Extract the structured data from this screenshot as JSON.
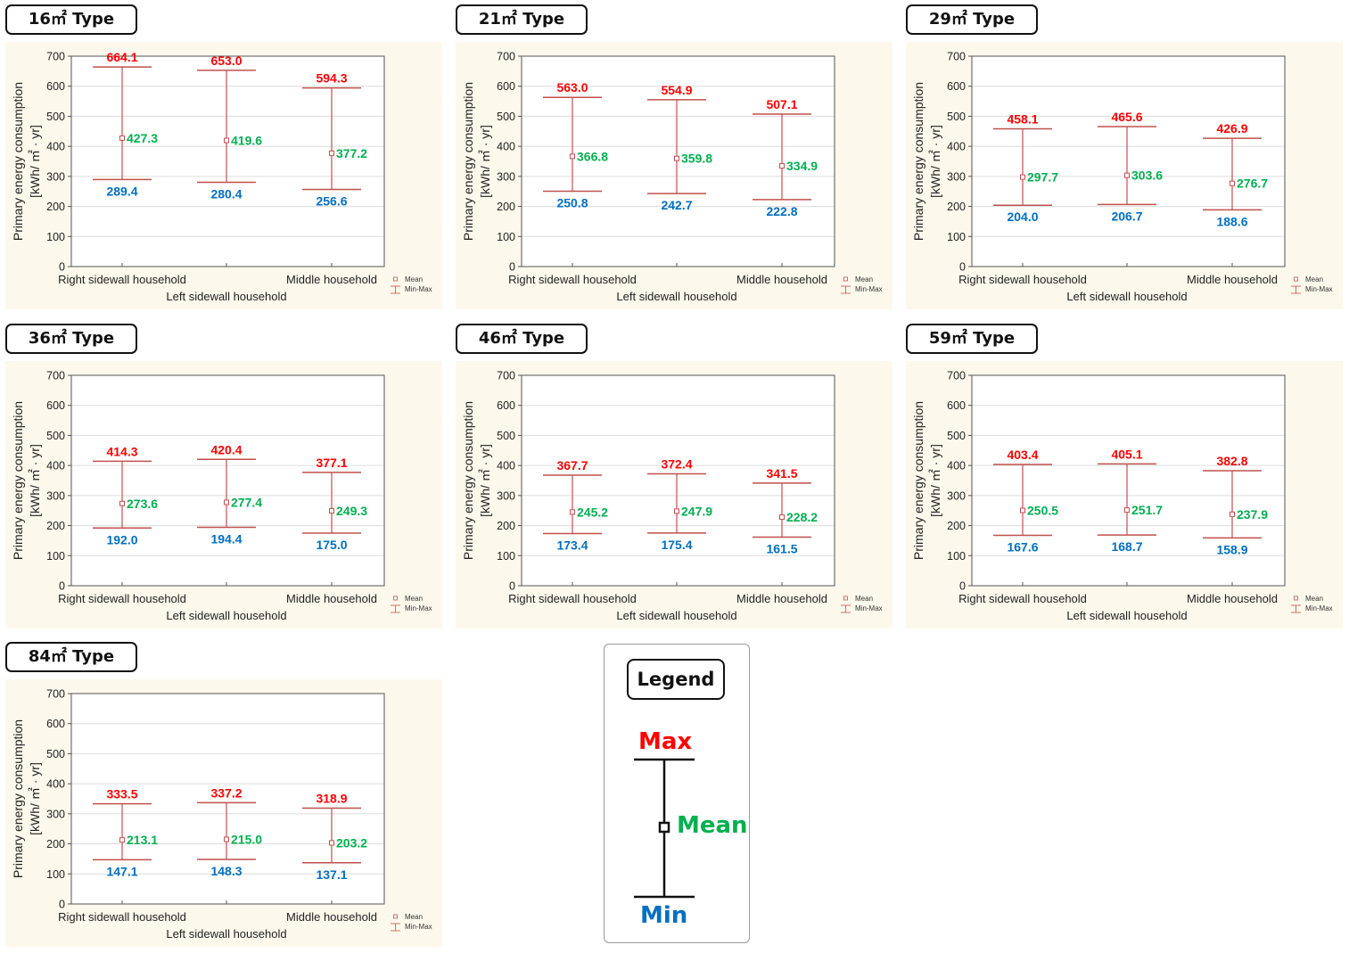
{
  "colors": {
    "max": "#ff0000",
    "mean": "#00b050",
    "min": "#0070c0",
    "bars": "#c0504d",
    "plot_bg": "#fcf8eb"
  },
  "chart_data": [
    {
      "type": "range-bar",
      "title": "16㎡ Type",
      "ylabel_line1": "Primary energy consumption",
      "ylabel_line2": "[kWh/ ㎡ · yr]",
      "categories": [
        "Right sidewall household",
        "Left sidewall household",
        "Middle household"
      ],
      "ylim": [
        0,
        700
      ],
      "yticks": [
        0,
        100,
        200,
        300,
        400,
        500,
        600,
        700
      ],
      "grid": true,
      "legend_position": "bottom-right",
      "legend_items": [
        "Mean",
        "Min-Max"
      ],
      "series": [
        {
          "name": "Max",
          "values": [
            664.1,
            653.0,
            594.3
          ]
        },
        {
          "name": "Mean",
          "values": [
            427.3,
            419.6,
            377.2
          ]
        },
        {
          "name": "Min",
          "values": [
            289.4,
            280.4,
            256.6
          ]
        }
      ]
    },
    {
      "type": "range-bar",
      "title": "21㎡ Type",
      "ylabel_line1": "Primary energy consumption",
      "ylabel_line2": "[kWh/ ㎡ · yr]",
      "categories": [
        "Right sidewall household",
        "Left sidewall household",
        "Middle household"
      ],
      "ylim": [
        0,
        700
      ],
      "yticks": [
        0,
        100,
        200,
        300,
        400,
        500,
        600,
        700
      ],
      "grid": true,
      "legend_position": "bottom-right",
      "legend_items": [
        "Mean",
        "Min-Max"
      ],
      "series": [
        {
          "name": "Max",
          "values": [
            563.0,
            554.9,
            507.1
          ]
        },
        {
          "name": "Mean",
          "values": [
            366.8,
            359.8,
            334.9
          ]
        },
        {
          "name": "Min",
          "values": [
            250.8,
            242.7,
            222.8
          ]
        }
      ]
    },
    {
      "type": "range-bar",
      "title": "29㎡ Type",
      "ylabel_line1": "Primary energy consumption",
      "ylabel_line2": "[kWh/ ㎡ · yr]",
      "categories": [
        "Right sidewall household",
        "Left sidewall household",
        "Middle household"
      ],
      "ylim": [
        0,
        700
      ],
      "yticks": [
        0,
        100,
        200,
        300,
        400,
        500,
        600,
        700
      ],
      "grid": true,
      "legend_position": "bottom-right",
      "legend_items": [
        "Mean",
        "Min-Max"
      ],
      "series": [
        {
          "name": "Max",
          "values": [
            458.1,
            465.6,
            426.9
          ]
        },
        {
          "name": "Mean",
          "values": [
            297.7,
            303.6,
            276.7
          ]
        },
        {
          "name": "Min",
          "values": [
            204.0,
            206.7,
            188.6
          ]
        }
      ]
    },
    {
      "type": "range-bar",
      "title": "36㎡ Type",
      "ylabel_line1": "Primary energy consumption",
      "ylabel_line2": "[kWh/ ㎡ · yr]",
      "categories": [
        "Right sidewall household",
        "Left sidewall household",
        "Middle household"
      ],
      "ylim": [
        0,
        700
      ],
      "yticks": [
        0,
        100,
        200,
        300,
        400,
        500,
        600,
        700
      ],
      "grid": true,
      "legend_position": "bottom-right",
      "legend_items": [
        "Mean",
        "Min-Max"
      ],
      "series": [
        {
          "name": "Max",
          "values": [
            414.3,
            420.4,
            377.1
          ]
        },
        {
          "name": "Mean",
          "values": [
            273.6,
            277.4,
            249.3
          ]
        },
        {
          "name": "Min",
          "values": [
            192.0,
            194.4,
            175.0
          ]
        }
      ]
    },
    {
      "type": "range-bar",
      "title": "46㎡ Type",
      "ylabel_line1": "Primary energy consumption",
      "ylabel_line2": "[kWh/ ㎡ · yr]",
      "categories": [
        "Right sidewall household",
        "Left sidewall household",
        "Middle household"
      ],
      "ylim": [
        0,
        700
      ],
      "yticks": [
        0,
        100,
        200,
        300,
        400,
        500,
        600,
        700
      ],
      "grid": true,
      "legend_position": "bottom-right",
      "legend_items": [
        "Mean",
        "Min-Max"
      ],
      "series": [
        {
          "name": "Max",
          "values": [
            367.7,
            372.4,
            341.5
          ]
        },
        {
          "name": "Mean",
          "values": [
            245.2,
            247.9,
            228.2
          ]
        },
        {
          "name": "Min",
          "values": [
            173.4,
            175.4,
            161.5
          ]
        }
      ]
    },
    {
      "type": "range-bar",
      "title": "59㎡ Type",
      "ylabel_line1": "Primary energy consumption",
      "ylabel_line2": "[kWh/ ㎡ · yr]",
      "categories": [
        "Right sidewall household",
        "Left sidewall household",
        "Middle household"
      ],
      "ylim": [
        0,
        700
      ],
      "yticks": [
        0,
        100,
        200,
        300,
        400,
        500,
        600,
        700
      ],
      "grid": true,
      "legend_position": "bottom-right",
      "legend_items": [
        "Mean",
        "Min-Max"
      ],
      "series": [
        {
          "name": "Max",
          "values": [
            403.4,
            405.1,
            382.8
          ]
        },
        {
          "name": "Mean",
          "values": [
            250.5,
            251.7,
            237.9
          ]
        },
        {
          "name": "Min",
          "values": [
            167.6,
            168.7,
            158.9
          ]
        }
      ]
    },
    {
      "type": "range-bar",
      "title": "84㎡ Type",
      "ylabel_line1": "Primary energy consumption",
      "ylabel_line2": "[kWh/ ㎡ · yr]",
      "categories": [
        "Right sidewall household",
        "Left sidewall household",
        "Middle household"
      ],
      "ylim": [
        0,
        700
      ],
      "yticks": [
        0,
        100,
        200,
        300,
        400,
        500,
        600,
        700
      ],
      "grid": true,
      "legend_position": "bottom-right",
      "legend_items": [
        "Mean",
        "Min-Max"
      ],
      "series": [
        {
          "name": "Max",
          "values": [
            333.5,
            337.2,
            318.9
          ]
        },
        {
          "name": "Mean",
          "values": [
            213.1,
            215.0,
            203.2
          ]
        },
        {
          "name": "Min",
          "values": [
            147.1,
            148.3,
            137.1
          ]
        }
      ]
    }
  ],
  "legend": {
    "title": "Legend",
    "max_label": "Max",
    "mean_label": "Mean",
    "min_label": "Min"
  }
}
